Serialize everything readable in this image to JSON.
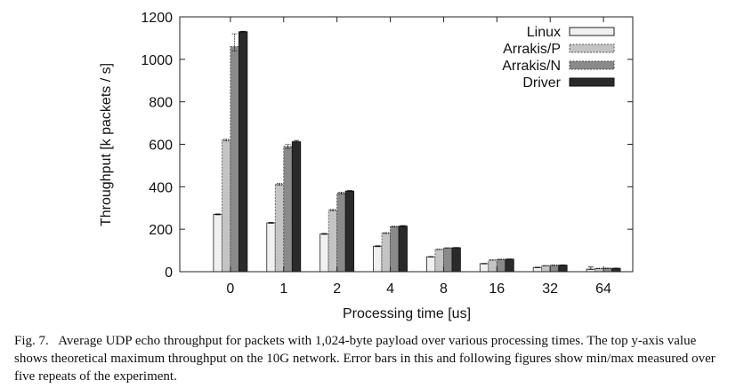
{
  "chart_data": {
    "type": "bar",
    "title": "",
    "xlabel": "Processing time [us]",
    "ylabel": "Throughput [k packets / s]",
    "ylim": [
      0,
      1200
    ],
    "yticks": [
      0,
      200,
      400,
      600,
      800,
      1000,
      1200
    ],
    "categories": [
      "0",
      "1",
      "2",
      "4",
      "8",
      "16",
      "32",
      "64"
    ],
    "legend_position": "top-right",
    "grid": false,
    "error_bars": true,
    "series": [
      {
        "name": "Linux",
        "values": [
          270,
          230,
          178,
          120,
          70,
          38,
          20,
          12
        ],
        "err_low": [
          268,
          228,
          176,
          118,
          69,
          37,
          19,
          11
        ],
        "err_high": [
          272,
          232,
          180,
          122,
          71,
          39,
          21,
          22
        ],
        "fill": "#f0f0f0",
        "stroke": "#222222",
        "dash": false
      },
      {
        "name": "Arrakis/P",
        "values": [
          620,
          412,
          290,
          182,
          105,
          55,
          28,
          15
        ],
        "err_low": [
          616,
          408,
          287,
          180,
          104,
          54,
          27,
          14
        ],
        "err_high": [
          624,
          416,
          293,
          184,
          106,
          56,
          29,
          16
        ],
        "fill": "#c4c4c4",
        "stroke": "#555555",
        "dash": true
      },
      {
        "name": "Arrakis/N",
        "values": [
          1060,
          590,
          370,
          212,
          112,
          58,
          30,
          16
        ],
        "err_low": [
          1040,
          580,
          366,
          210,
          111,
          57,
          29,
          15
        ],
        "err_high": [
          1120,
          600,
          374,
          214,
          113,
          59,
          31,
          17
        ],
        "fill": "#8a8a8a",
        "stroke": "#444444",
        "dash": true
      },
      {
        "name": "Driver",
        "values": [
          1130,
          612,
          380,
          215,
          113,
          59,
          31,
          16
        ],
        "err_low": [
          1128,
          610,
          378,
          213,
          112,
          58,
          30,
          15
        ],
        "err_high": [
          1132,
          618,
          382,
          217,
          114,
          60,
          32,
          17
        ],
        "fill": "#2a2a2a",
        "stroke": "#111111",
        "dash": false
      }
    ]
  },
  "caption": {
    "label": "Fig. 7.",
    "text": "Average UDP echo throughput for packets with 1,024-byte payload over various processing times. The top y-axis value shows theoretical maximum throughput on the 10G network. Error bars in this and following figures show min/max measured over five repeats of the experiment."
  }
}
